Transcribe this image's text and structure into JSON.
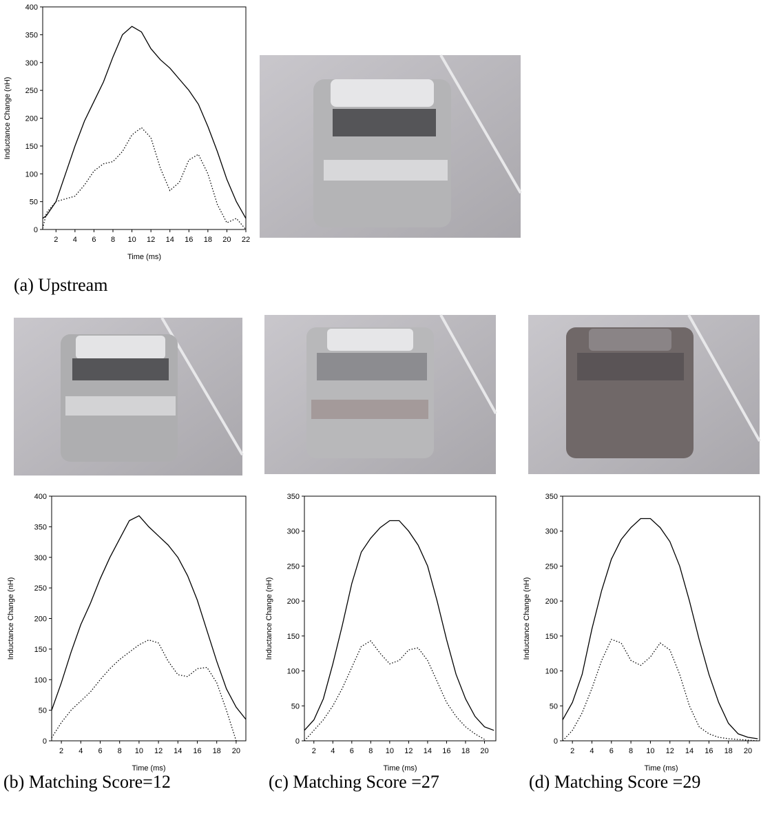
{
  "chart_data": [
    {
      "type": "line",
      "caption": "(a)  Upstream",
      "xlabel": "Time (ms)",
      "ylabel": "Inductance Change (nH)",
      "x": [
        0.6,
        1,
        2,
        3,
        4,
        5,
        6,
        7,
        8,
        9,
        10,
        11,
        12,
        13,
        14,
        15,
        16,
        17,
        18,
        19,
        20,
        21,
        22
      ],
      "series": [
        {
          "color": "#000000",
          "line_style": "solid",
          "values": [
            20,
            25,
            50,
            100,
            150,
            195,
            230,
            265,
            310,
            350,
            365,
            355,
            325,
            305,
            290,
            270,
            250,
            225,
            185,
            140,
            90,
            50,
            20
          ]
        },
        {
          "color": "#000000",
          "line_style": "dotted",
          "values": [
            2,
            30,
            50,
            55,
            60,
            80,
            105,
            118,
            122,
            140,
            170,
            183,
            165,
            110,
            70,
            85,
            125,
            135,
            100,
            45,
            12,
            20,
            0
          ]
        }
      ],
      "xlim": [
        0.6,
        22
      ],
      "ylim": [
        0,
        400
      ],
      "xticks": [
        2,
        4,
        6,
        8,
        10,
        12,
        14,
        16,
        18,
        20,
        22
      ],
      "yticks": [
        0,
        50,
        100,
        150,
        200,
        250,
        300,
        350,
        400
      ]
    },
    {
      "type": "line",
      "caption": "(b) Matching Score=12",
      "xlabel": "Time (ms)",
      "ylabel": "Inductance Change (nH)",
      "x": [
        1,
        2,
        3,
        4,
        5,
        6,
        7,
        8,
        9,
        10,
        11,
        12,
        13,
        14,
        15,
        16,
        17,
        18,
        19,
        20,
        21
      ],
      "series": [
        {
          "color": "#000000",
          "line_style": "solid",
          "values": [
            50,
            95,
            145,
            190,
            225,
            265,
            300,
            330,
            360,
            368,
            350,
            335,
            320,
            300,
            270,
            230,
            180,
            130,
            85,
            55,
            35
          ]
        },
        {
          "color": "#000000",
          "line_style": "dotted",
          "values": [
            5,
            30,
            50,
            65,
            80,
            100,
            118,
            133,
            145,
            157,
            165,
            160,
            130,
            108,
            105,
            118,
            120,
            95,
            50,
            0,
            null
          ]
        }
      ],
      "xlim": [
        1,
        21
      ],
      "ylim": [
        0,
        400
      ],
      "xticks": [
        2,
        4,
        6,
        8,
        10,
        12,
        14,
        16,
        18,
        20
      ],
      "yticks": [
        0,
        50,
        100,
        150,
        200,
        250,
        300,
        350,
        400
      ]
    },
    {
      "type": "line",
      "caption": "(c) Matching Score =27",
      "xlabel": "Time (ms)",
      "ylabel": "Inductance Change (nH)",
      "x": [
        1,
        2,
        3,
        4,
        5,
        6,
        7,
        8,
        9,
        10,
        11,
        12,
        13,
        14,
        15,
        16,
        17,
        18,
        19,
        20,
        21
      ],
      "series": [
        {
          "color": "#000000",
          "line_style": "solid",
          "values": [
            15,
            30,
            60,
            110,
            165,
            225,
            270,
            290,
            305,
            315,
            315,
            300,
            280,
            250,
            200,
            145,
            95,
            60,
            35,
            20,
            15
          ]
        },
        {
          "color": "#000000",
          "line_style": "dotted",
          "values": [
            0,
            15,
            30,
            50,
            75,
            105,
            135,
            143,
            125,
            110,
            115,
            130,
            133,
            115,
            85,
            55,
            35,
            20,
            10,
            2,
            null
          ]
        }
      ],
      "xlim": [
        1,
        21.2
      ],
      "ylim": [
        0,
        350
      ],
      "xticks": [
        2,
        4,
        6,
        8,
        10,
        12,
        14,
        16,
        18,
        20
      ],
      "yticks": [
        0,
        50,
        100,
        150,
        200,
        250,
        300,
        350
      ]
    },
    {
      "type": "line",
      "caption": "(d) Matching Score =29",
      "xlabel": "Time (ms)",
      "ylabel": "Inductance Change (nH)",
      "x": [
        1,
        2,
        3,
        4,
        5,
        6,
        7,
        8,
        9,
        10,
        11,
        12,
        13,
        14,
        15,
        16,
        17,
        18,
        19,
        20,
        21
      ],
      "series": [
        {
          "color": "#000000",
          "line_style": "solid",
          "values": [
            30,
            55,
            95,
            160,
            215,
            260,
            288,
            305,
            318,
            318,
            305,
            285,
            250,
            200,
            145,
            95,
            55,
            25,
            10,
            5,
            3
          ]
        },
        {
          "color": "#000000",
          "line_style": "dotted",
          "values": [
            0,
            15,
            40,
            75,
            115,
            145,
            140,
            115,
            108,
            120,
            140,
            130,
            95,
            50,
            20,
            10,
            5,
            3,
            2,
            1,
            0
          ]
        }
      ],
      "xlim": [
        1,
        21.2
      ],
      "ylim": [
        0,
        350
      ],
      "xticks": [
        2,
        4,
        6,
        8,
        10,
        12,
        14,
        16,
        18,
        20
      ],
      "yticks": [
        0,
        50,
        100,
        150,
        200,
        250,
        300,
        350
      ]
    }
  ]
}
